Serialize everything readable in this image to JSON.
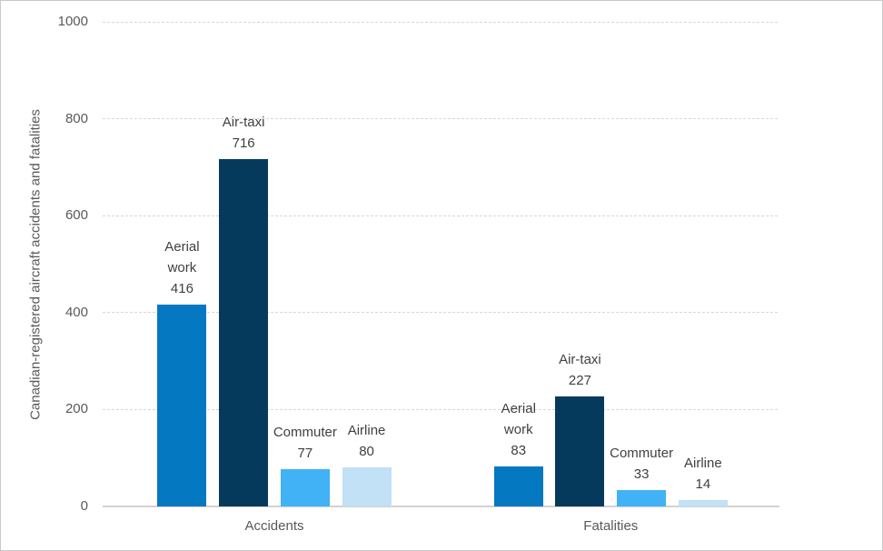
{
  "chart_data": {
    "type": "bar",
    "title": "",
    "xlabel": "",
    "ylabel": "Canadian-registered aircraft accidents and fatalities",
    "ylim": [
      0,
      1000
    ],
    "yticks": [
      0,
      200,
      400,
      600,
      800,
      1000
    ],
    "grid": true,
    "legend": false,
    "categories": [
      "Accidents",
      "Fatalities"
    ],
    "series": [
      {
        "name": "Aerial work",
        "label_lines": [
          "Aerial",
          "work"
        ],
        "color": "#0578C2",
        "values": [
          416,
          83
        ]
      },
      {
        "name": "Air-taxi",
        "label_lines": [
          "Air-taxi"
        ],
        "color": "#063A5C",
        "values": [
          716,
          227
        ]
      },
      {
        "name": "Commuter",
        "label_lines": [
          "Commuter"
        ],
        "color": "#41B2F5",
        "values": [
          77,
          33
        ]
      },
      {
        "name": "Airline",
        "label_lines": [
          "Airline"
        ],
        "color": "#C2E0F6",
        "values": [
          80,
          14
        ]
      }
    ],
    "data_labels_shown": true
  }
}
